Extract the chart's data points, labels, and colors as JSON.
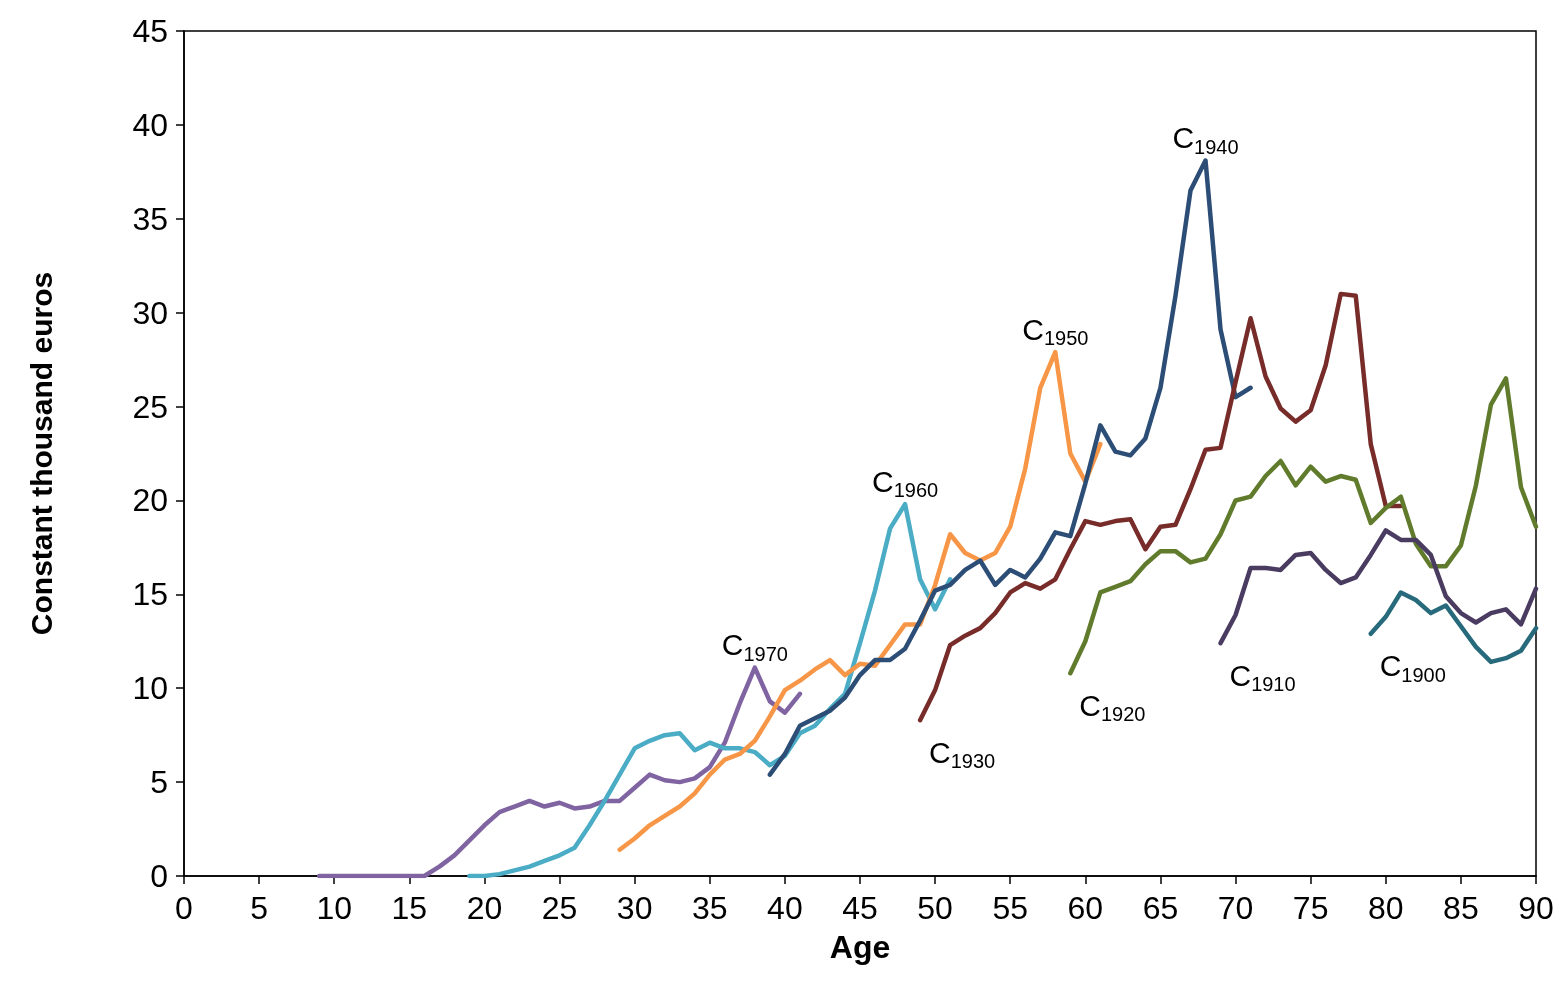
{
  "chart_data": {
    "type": "line",
    "xlabel": "Age",
    "ylabel": "Constant thousand euros",
    "xlim": [
      0,
      90
    ],
    "xticks": [
      0,
      5,
      10,
      15,
      20,
      25,
      30,
      35,
      40,
      45,
      50,
      55,
      60,
      65,
      70,
      75,
      80,
      85,
      90
    ],
    "ylim": [
      0,
      45
    ],
    "yticks": [
      0,
      5,
      10,
      15,
      20,
      25,
      30,
      35,
      40,
      45
    ],
    "grid": false,
    "legend": false,
    "marker": "none",
    "line_style": "solid",
    "series": [
      {
        "name": "C$_{1970}$",
        "color": "#8064a2",
        "x": [
          9,
          10,
          11,
          12,
          13,
          14,
          15,
          16,
          17,
          18,
          19,
          20,
          21,
          22,
          23,
          24,
          25,
          26,
          27,
          28,
          29,
          30,
          31,
          32,
          33,
          34,
          35,
          36,
          37,
          38,
          39,
          40,
          41
        ],
        "values": [
          0,
          0,
          0,
          0,
          0,
          0,
          0,
          0,
          0.5,
          1.1,
          1.9,
          2.7,
          3.4,
          3.7,
          4.0,
          3.7,
          3.9,
          3.6,
          3.7,
          4.0,
          4.0,
          4.7,
          5.4,
          5.1,
          5.0,
          5.2,
          5.8,
          7.1,
          9.2,
          11.1,
          9.3,
          8.7,
          9.7
        ]
      },
      {
        "name": "C$_{1960}$",
        "color": "#4bacc6",
        "x": [
          19,
          20,
          21,
          22,
          23,
          24,
          25,
          26,
          27,
          28,
          29,
          30,
          31,
          32,
          33,
          34,
          35,
          36,
          37,
          38,
          39,
          40,
          41,
          42,
          43,
          44,
          45,
          46,
          47,
          48,
          49,
          50,
          51
        ],
        "values": [
          0,
          0,
          0.1,
          0.3,
          0.5,
          0.8,
          1.1,
          1.5,
          2.7,
          4.0,
          5.4,
          6.8,
          7.2,
          7.5,
          7.6,
          6.7,
          7.1,
          6.8,
          6.8,
          6.6,
          5.9,
          6.4,
          7.6,
          8.0,
          8.9,
          9.7,
          12.4,
          15.2,
          18.5,
          19.8,
          15.8,
          14.2,
          15.8
        ]
      },
      {
        "name": "C$_{1950}$",
        "color": "#f79646",
        "x": [
          29,
          30,
          31,
          32,
          33,
          34,
          35,
          36,
          37,
          38,
          39,
          40,
          41,
          42,
          43,
          44,
          45,
          46,
          47,
          48,
          49,
          50,
          51,
          52,
          53,
          54,
          55,
          56,
          57,
          58,
          59,
          60,
          61
        ],
        "values": [
          1.4,
          2.0,
          2.7,
          3.2,
          3.7,
          4.4,
          5.4,
          6.2,
          6.5,
          7.2,
          8.5,
          9.9,
          10.4,
          11.0,
          11.5,
          10.7,
          11.3,
          11.2,
          12.3,
          13.4,
          13.4,
          15.5,
          18.2,
          17.2,
          16.8,
          17.2,
          18.6,
          21.7,
          26.0,
          27.9,
          22.5,
          21.0,
          23.0
        ]
      },
      {
        "name": "C$_{1940}$",
        "color": "#2c4d75",
        "x": [
          39,
          40,
          41,
          42,
          43,
          44,
          45,
          46,
          47,
          48,
          49,
          50,
          51,
          52,
          53,
          54,
          55,
          56,
          57,
          58,
          59,
          60,
          61,
          62,
          63,
          64,
          65,
          66,
          67,
          68,
          69,
          70,
          71
        ],
        "values": [
          5.4,
          6.5,
          8.0,
          8.4,
          8.8,
          9.5,
          10.7,
          11.5,
          11.5,
          12.1,
          13.6,
          15.2,
          15.5,
          16.3,
          16.8,
          15.5,
          16.3,
          15.9,
          16.9,
          18.3,
          18.1,
          20.9,
          24.0,
          22.6,
          22.4,
          23.3,
          26.0,
          30.9,
          36.5,
          38.1,
          29.1,
          25.5,
          26.0
        ]
      },
      {
        "name": "C$_{1930}$",
        "color": "#772c2a",
        "x": [
          49,
          50,
          51,
          52,
          53,
          54,
          55,
          56,
          57,
          58,
          59,
          60,
          61,
          62,
          63,
          64,
          65,
          66,
          67,
          68,
          69,
          70,
          71,
          72,
          73,
          74,
          75,
          76,
          77,
          78,
          79,
          80,
          81
        ],
        "values": [
          8.3,
          9.9,
          12.3,
          12.8,
          13.2,
          14.0,
          15.1,
          15.6,
          15.3,
          15.8,
          17.4,
          18.9,
          18.7,
          18.9,
          19.0,
          17.4,
          18.6,
          18.7,
          20.6,
          22.7,
          22.8,
          26.3,
          29.7,
          26.6,
          24.9,
          24.2,
          24.8,
          27.2,
          31.0,
          30.9,
          23.0,
          19.7,
          19.7
        ]
      },
      {
        "name": "C$_{1920}$",
        "color": "#617b2d",
        "x": [
          59,
          60,
          61,
          62,
          63,
          64,
          65,
          66,
          67,
          68,
          69,
          70,
          71,
          72,
          73,
          74,
          75,
          76,
          77,
          78,
          79,
          80,
          81,
          82,
          83,
          84,
          85,
          86,
          87,
          88,
          89,
          90
        ],
        "values": [
          10.8,
          12.5,
          15.1,
          15.4,
          15.7,
          16.6,
          17.3,
          17.3,
          16.7,
          16.9,
          18.2,
          20.0,
          20.2,
          21.3,
          22.1,
          20.8,
          21.8,
          21.0,
          21.3,
          21.1,
          18.8,
          19.6,
          20.2,
          17.7,
          16.5,
          16.5,
          17.6,
          20.8,
          25.1,
          26.5,
          20.7,
          18.6
        ]
      },
      {
        "name": "C$_{1910}$",
        "color": "#4a3b61",
        "x": [
          69,
          70,
          71,
          72,
          73,
          74,
          75,
          76,
          77,
          78,
          79,
          80,
          81,
          82,
          83,
          84,
          85,
          86,
          87,
          88,
          89,
          90
        ],
        "values": [
          12.4,
          13.9,
          16.4,
          16.4,
          16.3,
          17.1,
          17.2,
          16.3,
          15.6,
          15.9,
          17.1,
          18.4,
          17.9,
          17.9,
          17.1,
          14.9,
          14.0,
          13.5,
          14.0,
          14.2,
          13.4,
          15.3
        ]
      },
      {
        "name": "C$_{1900}$",
        "color": "#276a7c",
        "x": [
          79,
          80,
          81,
          82,
          83,
          84,
          85,
          86,
          87,
          88,
          89,
          90
        ],
        "values": [
          12.9,
          13.8,
          15.1,
          14.7,
          14.0,
          14.4,
          13.3,
          12.2,
          11.4,
          11.6,
          12.0,
          13.2
        ]
      }
    ]
  }
}
